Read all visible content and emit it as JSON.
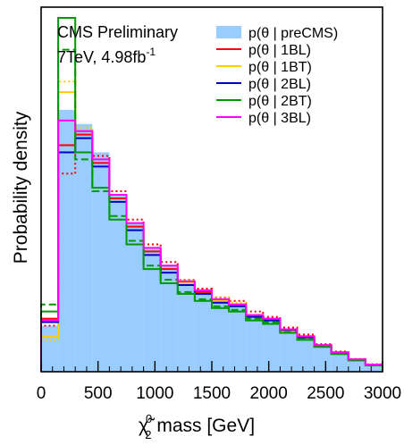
{
  "chart_data": {
    "type": "histogram",
    "annotations": [
      "CMS Preliminary",
      "7TeV, 4.98fb",
      "-1"
    ],
    "xlabel": {
      "prefix": "χ̃",
      "sup": "0",
      "sub": "2",
      "suffix": " mass [GeV]"
    },
    "ylabel": "Probability density",
    "x_unit": "GeV",
    "xlim": [
      0,
      3000
    ],
    "ylim": [
      0,
      1.0
    ],
    "x_ticks": [
      0,
      500,
      1000,
      1500,
      2000,
      2500,
      3000
    ],
    "x_tick_labels": [
      "0",
      "500",
      "1000",
      "1500",
      "2000",
      "2500",
      "3000"
    ],
    "y_tick_labels_shown": false,
    "bin_edges": [
      0,
      150,
      300,
      450,
      600,
      750,
      900,
      1050,
      1200,
      1350,
      1500,
      1650,
      1800,
      1950,
      2100,
      2250,
      2400,
      2550,
      2700,
      2850,
      3000
    ],
    "legend": [
      {
        "label": "p(θ | preCMS)",
        "style": "fill",
        "color": "#99ccff"
      },
      {
        "label": "p(θ | 1BL)",
        "style": "line",
        "color": "#ff0000"
      },
      {
        "label": "p(θ | 1BT)",
        "style": "line",
        "color": "#ffcc00"
      },
      {
        "label": "p(θ | 2BL)",
        "style": "line",
        "color": "#0000cc"
      },
      {
        "label": "p(θ | 2BT)",
        "style": "line",
        "color": "#009900"
      },
      {
        "label": "p(θ | 3BL)",
        "style": "line",
        "color": "#ff00ff"
      }
    ],
    "series": [
      {
        "id": "preCMS",
        "color": "#99ccff",
        "style": "fill",
        "values": [
          0.13,
          0.74,
          0.7,
          0.62,
          0.5,
          0.42,
          0.35,
          0.3,
          0.26,
          0.23,
          0.2,
          0.19,
          0.16,
          0.15,
          0.12,
          0.1,
          0.075,
          0.055,
          0.035,
          0.02
        ]
      },
      {
        "id": "1BL",
        "color": "#ff0000",
        "style": "solid",
        "values": [
          0.15,
          0.64,
          0.67,
          0.59,
          0.49,
          0.41,
          0.34,
          0.29,
          0.25,
          0.225,
          0.2,
          0.19,
          0.16,
          0.15,
          0.12,
          0.1,
          0.075,
          0.055,
          0.035,
          0.02
        ]
      },
      {
        "id": "1BL-band",
        "color": "#ff0000",
        "style": "dotted",
        "values": [
          0.13,
          0.56,
          0.68,
          0.61,
          0.51,
          0.43,
          0.36,
          0.31,
          0.26,
          0.235,
          0.21,
          0.2,
          0.17,
          0.155,
          0.125,
          0.105,
          0.078,
          0.057,
          0.036,
          0.021
        ]
      },
      {
        "id": "1BT",
        "color": "#ffcc00",
        "style": "solid",
        "values": [
          0.1,
          0.79,
          0.68,
          0.58,
          0.48,
          0.4,
          0.33,
          0.28,
          0.25,
          0.22,
          0.2,
          0.185,
          0.155,
          0.145,
          0.115,
          0.095,
          0.072,
          0.052,
          0.033,
          0.019
        ]
      },
      {
        "id": "1BT-band",
        "color": "#ffcc00",
        "style": "dotted",
        "values": [
          0.09,
          0.82,
          0.69,
          0.6,
          0.5,
          0.42,
          0.35,
          0.3,
          0.26,
          0.23,
          0.21,
          0.195,
          0.16,
          0.15,
          0.12,
          0.1,
          0.075,
          0.055,
          0.035,
          0.02
        ]
      },
      {
        "id": "2BL",
        "color": "#0000cc",
        "style": "solid",
        "values": [
          0.14,
          0.62,
          0.66,
          0.58,
          0.48,
          0.4,
          0.33,
          0.28,
          0.245,
          0.22,
          0.195,
          0.185,
          0.155,
          0.145,
          0.118,
          0.097,
          0.073,
          0.053,
          0.034,
          0.019
        ]
      },
      {
        "id": "2BT",
        "color": "#009900",
        "style": "solid",
        "values": [
          0.17,
          1.0,
          0.62,
          0.52,
          0.43,
          0.36,
          0.29,
          0.25,
          0.22,
          0.2,
          0.18,
          0.17,
          0.145,
          0.135,
          0.11,
          0.09,
          0.07,
          0.05,
          0.032,
          0.018
        ]
      },
      {
        "id": "2BT-band",
        "color": "#009900",
        "style": "dashed",
        "values": [
          0.19,
          0.91,
          0.6,
          0.51,
          0.44,
          0.37,
          0.3,
          0.26,
          0.225,
          0.205,
          0.185,
          0.175,
          0.15,
          0.14,
          0.112,
          0.092,
          0.071,
          0.051,
          0.033,
          0.018
        ]
      },
      {
        "id": "3BL",
        "color": "#ff00ff",
        "style": "solid",
        "values": [
          0.145,
          0.71,
          0.68,
          0.6,
          0.5,
          0.42,
          0.35,
          0.3,
          0.255,
          0.23,
          0.205,
          0.19,
          0.16,
          0.15,
          0.12,
          0.1,
          0.075,
          0.055,
          0.035,
          0.02
        ]
      }
    ]
  }
}
